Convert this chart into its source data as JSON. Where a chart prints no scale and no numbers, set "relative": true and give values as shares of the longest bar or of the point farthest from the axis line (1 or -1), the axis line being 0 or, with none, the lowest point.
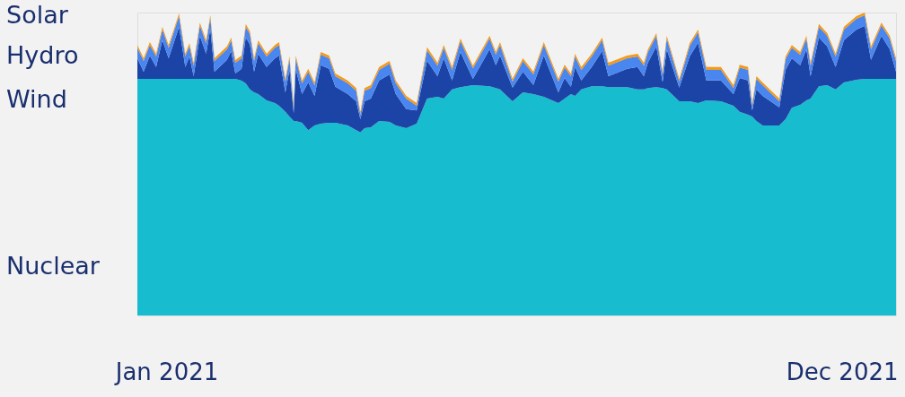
{
  "chart_data": {
    "type": "area",
    "stacked": true,
    "relative": true,
    "x": [
      "2021-01-01",
      "2021-01-04",
      "2021-01-07",
      "2021-01-10",
      "2021-01-13",
      "2021-01-16",
      "2021-01-21",
      "2021-01-24",
      "2021-01-26",
      "2021-01-28",
      "2021-01-31",
      "2021-02-03",
      "2021-02-05",
      "2021-02-07",
      "2021-02-13",
      "2021-02-15",
      "2021-02-17",
      "2021-02-20",
      "2021-02-22",
      "2021-02-24",
      "2021-02-26",
      "2021-02-28",
      "2021-03-04",
      "2021-03-08",
      "2021-03-10",
      "2021-03-13",
      "2021-03-15",
      "2021-03-17",
      "2021-03-18",
      "2021-03-21",
      "2021-03-24",
      "2021-03-27",
      "2021-03-30",
      "2021-04-03",
      "2021-04-06",
      "2021-04-12",
      "2021-04-16",
      "2021-04-18",
      "2021-04-20",
      "2021-04-23",
      "2021-04-27",
      "2021-05-02",
      "2021-05-05",
      "2021-05-10",
      "2021-05-15",
      "2021-05-20",
      "2021-05-25",
      "2021-05-28",
      "2021-06-01",
      "2021-06-05",
      "2021-06-11",
      "2021-06-19",
      "2021-06-22",
      "2021-06-24",
      "2021-06-30",
      "2021-07-05",
      "2021-07-10",
      "2021-07-15",
      "2021-07-22",
      "2021-07-25",
      "2021-07-28",
      "2021-07-30",
      "2021-08-02",
      "2021-08-07",
      "2021-08-12",
      "2021-08-15",
      "2021-08-24",
      "2021-08-29",
      "2021-09-01",
      "2021-09-03",
      "2021-09-07",
      "2021-09-10",
      "2021-09-12",
      "2021-09-18",
      "2021-09-23",
      "2021-09-27",
      "2021-10-01",
      "2021-10-08",
      "2021-10-14",
      "2021-10-17",
      "2021-10-21",
      "2021-10-23",
      "2021-10-25",
      "2021-10-28",
      "2021-11-05",
      "2021-11-08",
      "2021-11-11",
      "2021-11-15",
      "2021-11-18",
      "2021-11-20",
      "2021-11-24",
      "2021-11-28",
      "2021-12-02",
      "2021-12-06",
      "2021-12-12",
      "2021-12-16",
      "2021-12-19",
      "2021-12-24",
      "2021-12-28",
      "2021-12-31"
    ],
    "xlim": [
      "2021-01-01",
      "2021-12-31"
    ],
    "xticks": [
      {
        "value": "2021-01-15",
        "label": "Jan 2021"
      },
      {
        "value": "2021-12-05",
        "label": "Dec 2021"
      }
    ],
    "series": [
      {
        "name": "Nuclear",
        "color": "#17bccf",
        "values": [
          0.781,
          0.781,
          0.781,
          0.781,
          0.781,
          0.781,
          0.781,
          0.781,
          0.781,
          0.781,
          0.781,
          0.781,
          0.781,
          0.781,
          0.781,
          0.781,
          0.781,
          0.775,
          0.766,
          0.746,
          0.737,
          0.731,
          0.71,
          0.701,
          0.692,
          0.672,
          0.657,
          0.642,
          0.642,
          0.636,
          0.612,
          0.627,
          0.633,
          0.636,
          0.636,
          0.627,
          0.612,
          0.604,
          0.618,
          0.621,
          0.642,
          0.639,
          0.627,
          0.618,
          0.633,
          0.716,
          0.722,
          0.716,
          0.746,
          0.754,
          0.76,
          0.757,
          0.751,
          0.746,
          0.707,
          0.737,
          0.731,
          0.722,
          0.701,
          0.716,
          0.731,
          0.725,
          0.746,
          0.757,
          0.757,
          0.754,
          0.754,
          0.746,
          0.746,
          0.751,
          0.754,
          0.751,
          0.746,
          0.707,
          0.707,
          0.701,
          0.71,
          0.707,
          0.692,
          0.672,
          0.663,
          0.657,
          0.642,
          0.627,
          0.627,
          0.648,
          0.686,
          0.695,
          0.71,
          0.716,
          0.757,
          0.76,
          0.746,
          0.769,
          0.778,
          0.781,
          0.781,
          0.781,
          0.781,
          0.781
        ]
      },
      {
        "name": "Wind",
        "color": "#1c44a6",
        "values": [
          0.068,
          0.024,
          0.077,
          0.039,
          0.128,
          0.068,
          0.172,
          0.039,
          0.074,
          0.009,
          0.142,
          0.083,
          0.166,
          0.024,
          0.063,
          0.092,
          0.018,
          0.039,
          0.152,
          0.148,
          0.068,
          0.133,
          0.11,
          0.148,
          0.166,
          0.065,
          0.154,
          0.026,
          0.172,
          0.095,
          0.158,
          0.098,
          0.193,
          0.178,
          0.119,
          0.104,
          0.095,
          0.044,
          0.089,
          0.095,
          0.134,
          0.157,
          0.104,
          0.063,
          0.044,
          0.125,
          0.068,
          0.133,
          0.03,
          0.116,
          0.021,
          0.122,
          0.075,
          0.112,
          0.045,
          0.068,
          0.03,
          0.136,
          0.036,
          0.068,
          0.024,
          0.095,
          0.03,
          0.063,
          0.116,
          0.036,
          0.06,
          0.074,
          0.044,
          0.084,
          0.134,
          0.02,
          0.133,
          0.045,
          0.148,
          0.199,
          0.066,
          0.069,
          0.039,
          0.112,
          0.113,
          0.02,
          0.104,
          0.098,
          0.06,
          0.163,
          0.163,
          0.131,
          0.169,
          0.074,
          0.161,
          0.128,
          0.074,
          0.14,
          0.166,
          0.175,
          0.063,
          0.142,
          0.098,
          0.024
        ]
      },
      {
        "name": "Hydro",
        "color": "#4a86f0",
        "values": [
          0.035,
          0.035,
          0.035,
          0.035,
          0.035,
          0.035,
          0.035,
          0.035,
          0.035,
          0.035,
          0.035,
          0.035,
          0.035,
          0.035,
          0.035,
          0.035,
          0.035,
          0.035,
          0.035,
          0.035,
          0.035,
          0.035,
          0.035,
          0.035,
          0.035,
          0.035,
          0.035,
          0.015,
          0.035,
          0.035,
          0.035,
          0.035,
          0.035,
          0.035,
          0.035,
          0.035,
          0.035,
          0.015,
          0.035,
          0.035,
          0.035,
          0.035,
          0.035,
          0.035,
          0.015,
          0.035,
          0.035,
          0.035,
          0.035,
          0.035,
          0.035,
          0.035,
          0.035,
          0.035,
          0.02,
          0.035,
          0.035,
          0.035,
          0.035,
          0.035,
          0.035,
          0.035,
          0.035,
          0.035,
          0.035,
          0.035,
          0.035,
          0.035,
          0.035,
          0.035,
          0.035,
          0.025,
          0.035,
          0.02,
          0.035,
          0.035,
          0.035,
          0.035,
          0.02,
          0.035,
          0.035,
          0.015,
          0.035,
          0.035,
          0.02,
          0.035,
          0.035,
          0.035,
          0.035,
          0.035,
          0.035,
          0.035,
          0.035,
          0.035,
          0.035,
          0.035,
          0.035,
          0.035,
          0.035,
          0.035
        ]
      },
      {
        "name": "Solar",
        "color": "#f29a1a",
        "values": [
          0.009,
          0.009,
          0.009,
          0.009,
          0.009,
          0.009,
          0.009,
          0.009,
          0.009,
          0.009,
          0.009,
          0.009,
          0.009,
          0.009,
          0.009,
          0.009,
          0.009,
          0.009,
          0.009,
          0.009,
          0.009,
          0.009,
          0.009,
          0.009,
          0.009,
          0.009,
          0.009,
          0.009,
          0.009,
          0.009,
          0.009,
          0.009,
          0.009,
          0.009,
          0.009,
          0.009,
          0.009,
          0.009,
          0.009,
          0.009,
          0.009,
          0.009,
          0.009,
          0.009,
          0.009,
          0.009,
          0.009,
          0.009,
          0.009,
          0.009,
          0.009,
          0.009,
          0.009,
          0.009,
          0.009,
          0.009,
          0.009,
          0.009,
          0.009,
          0.009,
          0.009,
          0.009,
          0.009,
          0.009,
          0.009,
          0.009,
          0.009,
          0.009,
          0.009,
          0.009,
          0.009,
          0.009,
          0.009,
          0.009,
          0.009,
          0.009,
          0.009,
          0.009,
          0.009,
          0.009,
          0.009,
          0.009,
          0.009,
          0.009,
          0.009,
          0.009,
          0.009,
          0.009,
          0.009,
          0.009,
          0.009,
          0.009,
          0.009,
          0.009,
          0.009,
          0.009,
          0.009,
          0.009,
          0.009,
          0.009
        ]
      }
    ]
  }
}
